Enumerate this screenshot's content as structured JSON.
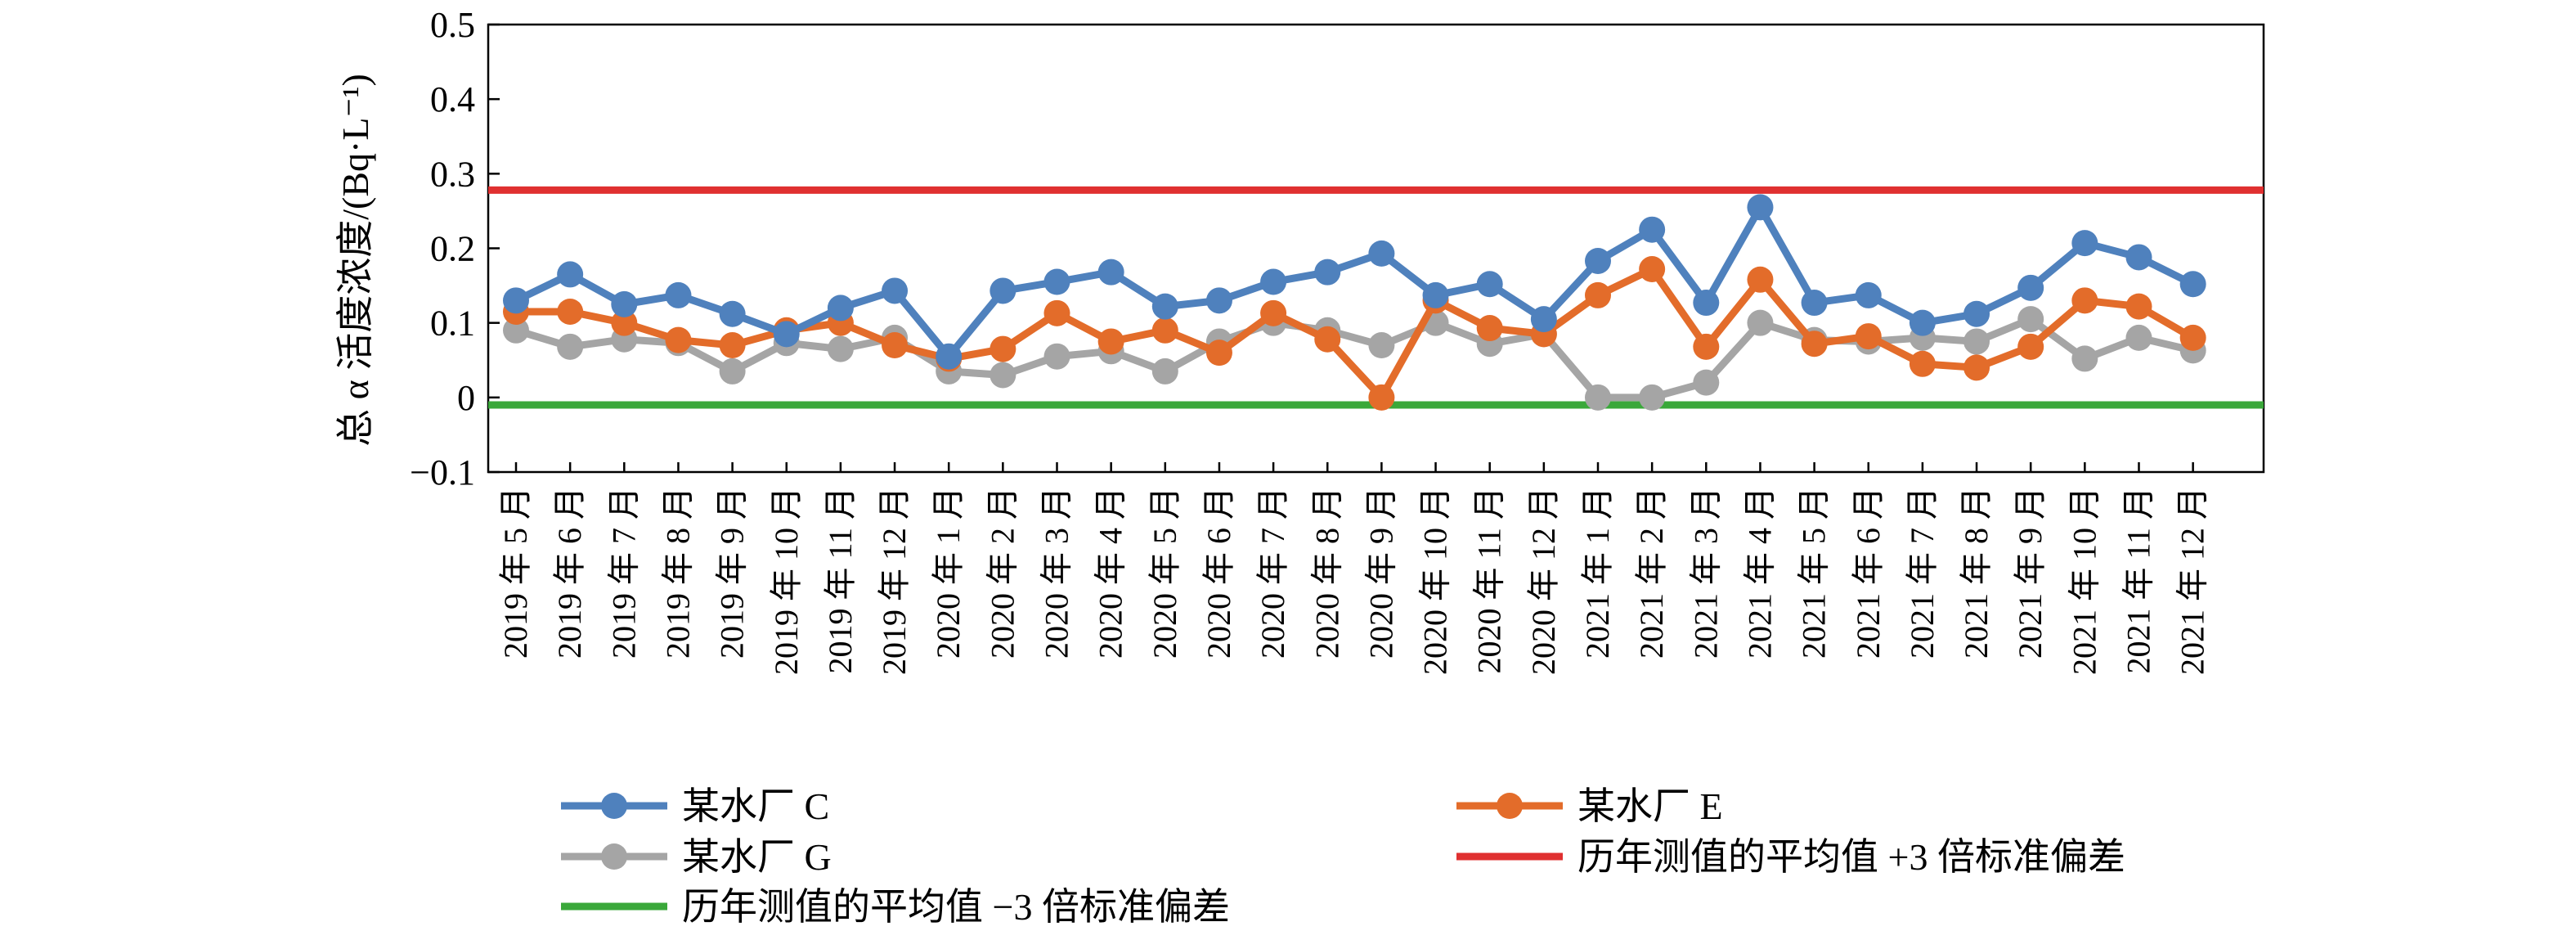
{
  "chart_data": {
    "type": "line",
    "title": "",
    "xlabel": "",
    "ylabel": "总 α 活度浓度/(Bq·L⁻¹)",
    "ylim": [
      -0.1,
      0.5
    ],
    "yticks": [
      "−0.1",
      "0",
      "0.1",
      "0.2",
      "0.3",
      "0.4",
      "0.5"
    ],
    "ytick_values": [
      -0.1,
      0,
      0.1,
      0.2,
      0.3,
      0.4,
      0.5
    ],
    "grid": false,
    "legend_position": "bottom",
    "categories": [
      "2019 年 5 月",
      "2019 年 6 月",
      "2019 年 7 月",
      "2019 年 8 月",
      "2019 年 9 月",
      "2019 年 10 月",
      "2019 年 11 月",
      "2019 年 12 月",
      "2020 年 1 月",
      "2020 年 2 月",
      "2020 年 3 月",
      "2020 年 4 月",
      "2020 年 5 月",
      "2020 年 6 月",
      "2020 年 7 月",
      "2020 年 8 月",
      "2020 年 9 月",
      "2020 年 10 月",
      "2020 年 11 月",
      "2020 年 12 月",
      "2021 年 1 月",
      "2021 年 2 月",
      "2021 年 3 月",
      "2021 年 4 月",
      "2021 年 5 月",
      "2021 年 6 月",
      "2021 年 7 月",
      "2021 年 8 月",
      "2021 年 9 月",
      "2021 年 10 月",
      "2021 年 11 月",
      "2021 年 12 月"
    ],
    "series": [
      {
        "name": "某水厂 C",
        "color": "#4f81bd",
        "values": [
          0.13,
          0.165,
          0.125,
          0.137,
          0.112,
          0.085,
          0.12,
          0.143,
          0.055,
          0.143,
          0.155,
          0.168,
          0.122,
          0.13,
          0.155,
          0.168,
          0.193,
          0.137,
          0.152,
          0.105,
          0.183,
          0.225,
          0.127,
          0.255,
          0.127,
          0.137,
          0.1,
          0.112,
          0.147,
          0.207,
          0.188,
          0.152
        ]
      },
      {
        "name": "某水厂 E",
        "color": "#e36c2a",
        "values": [
          0.115,
          0.115,
          0.1,
          0.077,
          0.07,
          0.09,
          0.1,
          0.07,
          0.052,
          0.065,
          0.113,
          0.075,
          0.09,
          0.06,
          0.113,
          0.078,
          0.0,
          0.13,
          0.093,
          0.085,
          0.137,
          0.172,
          0.068,
          0.158,
          0.072,
          0.082,
          0.045,
          0.04,
          0.068,
          0.13,
          0.122,
          0.08
        ]
      },
      {
        "name": "某水厂 G",
        "color": "#a5a5a5",
        "values": [
          0.09,
          0.068,
          0.078,
          0.073,
          0.035,
          0.073,
          0.065,
          0.08,
          0.035,
          0.03,
          0.055,
          0.062,
          0.035,
          0.075,
          0.1,
          0.09,
          0.07,
          0.1,
          0.072,
          0.085,
          0.0,
          0.0,
          0.02,
          0.1,
          0.077,
          0.075,
          0.08,
          0.075,
          0.105,
          0.052,
          0.08,
          0.063
        ]
      }
    ],
    "reference_lines": [
      {
        "name": "历年测值的平均值 +3 倍标准偏差",
        "value": 0.278,
        "color": "#e03030"
      },
      {
        "name": "历年测值的平均值 −3 倍标准偏差",
        "value": -0.01,
        "color": "#3aa83a"
      }
    ]
  }
}
